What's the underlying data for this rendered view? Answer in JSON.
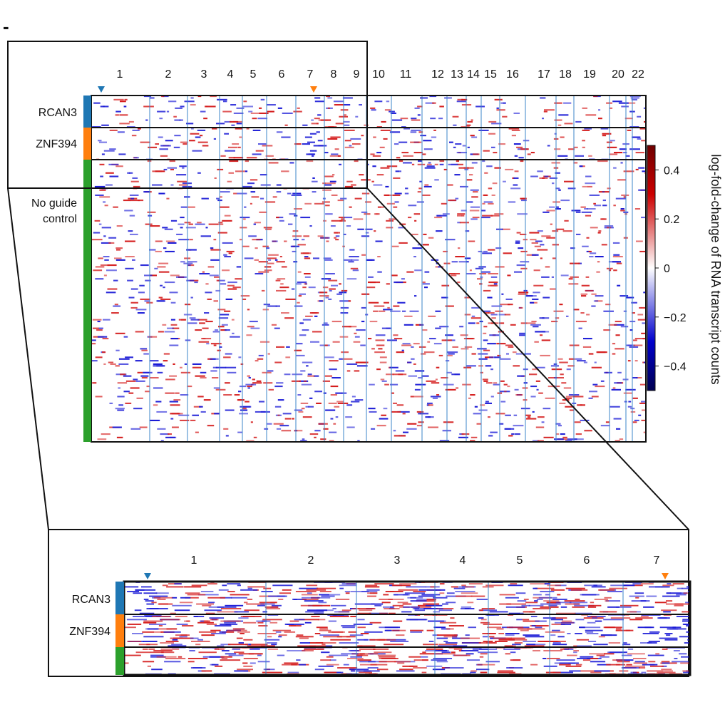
{
  "panel_letter": "-",
  "chart_data": [
    {
      "type": "heatmap",
      "view": "genome-wide",
      "title": "",
      "xlabel": "",
      "ylabel": "",
      "chromosome_labels": [
        "1",
        "2",
        "3",
        "4",
        "5",
        "6",
        "7",
        "8",
        "9",
        "10",
        "11",
        "12",
        "13",
        "14",
        "15",
        "16",
        "17",
        "18",
        "19",
        "20",
        "22"
      ],
      "row_groups": [
        {
          "name": "RCAN3",
          "color": "#1f77b4",
          "relative_size": 1
        },
        {
          "name": "ZNF394",
          "color": "#ff7f0e",
          "relative_size": 1
        },
        {
          "name": "No guide control",
          "line1": "No guide",
          "line2": "control",
          "color": "#2ca02c",
          "relative_size": 8.6
        }
      ],
      "target_markers": [
        {
          "group": "RCAN3",
          "chromosome": "1",
          "color": "#1f77b4"
        },
        {
          "group": "ZNF394",
          "chromosome": "7",
          "color": "#ff7f0e"
        }
      ],
      "colorbar": {
        "label": "log-fold-change of RNA transcript counts",
        "ticks": [
          "0.4",
          "0.2",
          "0",
          "−0.2",
          "−0.4"
        ],
        "tick_values": [
          0.4,
          0.2,
          0,
          -0.2,
          -0.4
        ],
        "range": [
          -0.5,
          0.5
        ],
        "colors": [
          "#000050",
          "#0000cc",
          "#ffffff",
          "#cc0000",
          "#6e0000"
        ]
      }
    },
    {
      "type": "heatmap",
      "view": "zoom chromosomes 1-7",
      "chromosome_labels": [
        "1",
        "2",
        "3",
        "4",
        "5",
        "6",
        "7"
      ],
      "row_groups": [
        {
          "name": "RCAN3",
          "color": "#1f77b4"
        },
        {
          "name": "ZNF394",
          "color": "#ff7f0e"
        },
        {
          "name": "No guide control",
          "color": "#2ca02c"
        }
      ],
      "target_markers": [
        {
          "group": "RCAN3",
          "chromosome": "1",
          "color": "#1f77b4"
        },
        {
          "group": "ZNF394",
          "chromosome": "7",
          "color": "#ff7f0e"
        }
      ]
    }
  ]
}
